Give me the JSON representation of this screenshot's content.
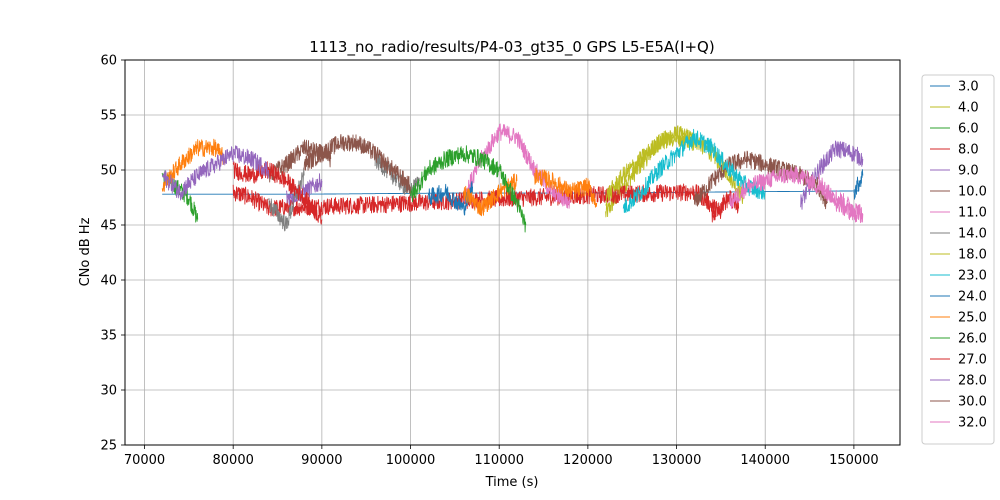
{
  "chart_data": {
    "type": "line",
    "title": "1113_no_radio/results/P4-03_gt35_0 GPS L5-E5A(I+Q)",
    "xlabel": "Time (s)",
    "ylabel": "CNo dB Hz",
    "xlim": [
      67800,
      155200
    ],
    "ylim": [
      25,
      60
    ],
    "xticks": [
      70000,
      80000,
      90000,
      100000,
      110000,
      120000,
      130000,
      140000,
      150000
    ],
    "yticks": [
      25,
      30,
      35,
      40,
      45,
      50,
      55,
      60
    ],
    "grid": true,
    "legend_position": "right",
    "series": [
      {
        "name": "3.0",
        "color": "#1f77b4",
        "segments": [
          [
            [
              72000,
              47.8
            ],
            [
              88000,
              47.8
            ],
            [
              104000,
              47.9
            ],
            [
              120000,
              47.9
            ],
            [
              135000,
              48.0
            ],
            [
              150500,
              48.1
            ]
          ]
        ]
      },
      {
        "name": "4.0",
        "color": "#bcbd22",
        "segments": [
          [
            [
              122000,
              46
            ],
            [
              124000,
              48.5
            ],
            [
              126000,
              50.5
            ],
            [
              128000,
              52.5
            ],
            [
              130000,
              53.3
            ],
            [
              132000,
              52.8
            ],
            [
              134000,
              51.5
            ],
            [
              136000,
              49.5
            ],
            [
              137500,
              47.5
            ]
          ]
        ]
      },
      {
        "name": "6.0",
        "color": "#2ca02c",
        "segments": [
          [
            [
              72000,
              49.5
            ],
            [
              73500,
              48.5
            ],
            [
              75000,
              47.5
            ],
            [
              76000,
              45.5
            ]
          ]
        ]
      },
      {
        "name": "8.0",
        "color": "#d62728",
        "segments": [
          [
            [
              80000,
              48
            ],
            [
              82000,
              47.5
            ],
            [
              84000,
              46.5
            ],
            [
              86000,
              46.6
            ],
            [
              95000,
              46.8
            ],
            [
              105000,
              47.2
            ],
            [
              120000,
              47.7
            ],
            [
              132000,
              48.0
            ],
            [
              133000,
              47.5
            ],
            [
              135000,
              46
            ]
          ]
        ]
      },
      {
        "name": "9.0",
        "color": "#9467bd",
        "segments": [
          [
            [
              86000,
              47.5
            ],
            [
              88000,
              48
            ],
            [
              90000,
              49
            ]
          ],
          [
            [
              144000,
              47
            ],
            [
              146000,
              50
            ],
            [
              148000,
              52
            ],
            [
              150000,
              51.5
            ],
            [
              151000,
              51
            ]
          ]
        ]
      },
      {
        "name": "10.0",
        "color": "#8c564b",
        "segments": [
          [
            [
              84000,
              49.5
            ],
            [
              86000,
              50.5
            ],
            [
              88000,
              52
            ],
            [
              90000,
              51.5
            ],
            [
              91000,
              51
            ]
          ],
          [
            [
              132000,
              47
            ],
            [
              134000,
              49
            ],
            [
              136000,
              50.5
            ],
            [
              138000,
              51
            ],
            [
              140000,
              50.5
            ],
            [
              142000,
              50
            ],
            [
              144000,
              49.5
            ],
            [
              146000,
              48.5
            ],
            [
              147000,
              47
            ]
          ]
        ]
      },
      {
        "name": "11.0",
        "color": "#e377c2",
        "segments": [
          [
            [
              106000,
              47.5
            ],
            [
              108000,
              51
            ],
            [
              110000,
              53.5
            ],
            [
              112000,
              53
            ],
            [
              114000,
              50
            ],
            [
              116000,
              48
            ],
            [
              118000,
              47
            ]
          ],
          [
            [
              146000,
              49
            ],
            [
              148000,
              47
            ],
            [
              150000,
              46
            ],
            [
              151000,
              46
            ]
          ]
        ]
      },
      {
        "name": "14.0",
        "color": "#7f7f7f",
        "segments": [
          [
            [
              84000,
              47
            ],
            [
              86000,
              45
            ],
            [
              87000,
              47.5
            ],
            [
              88000,
              49.5
            ]
          ],
          [
            [
              96000,
              51
            ],
            [
              98000,
              49.5
            ],
            [
              100000,
              48
            ],
            [
              101000,
              49
            ]
          ]
        ]
      },
      {
        "name": "18.0",
        "color": "#bcbd22",
        "segments": [
          [
            [
              122000,
              47.5
            ],
            [
              124000,
              49.5
            ],
            [
              126000,
              51
            ],
            [
              128000,
              52.5
            ],
            [
              130000,
              53
            ],
            [
              132000,
              52.5
            ]
          ]
        ]
      },
      {
        "name": "23.0",
        "color": "#17becf",
        "segments": [
          [
            [
              124000,
              46.5
            ],
            [
              126000,
              48
            ],
            [
              128000,
              50
            ],
            [
              130000,
              51.5
            ],
            [
              132000,
              53
            ],
            [
              134000,
              52
            ],
            [
              136000,
              50
            ],
            [
              138000,
              48.5
            ],
            [
              140000,
              48
            ]
          ]
        ]
      },
      {
        "name": "24.0",
        "color": "#1f77b4",
        "segments": [
          [
            [
              102000,
              47.5
            ],
            [
              104000,
              48
            ],
            [
              106000,
              46.5
            ],
            [
              107000,
              48.5
            ]
          ],
          [
            [
              150000,
              48
            ],
            [
              151000,
              49.5
            ]
          ]
        ]
      },
      {
        "name": "25.0",
        "color": "#ff7f0e",
        "segments": [
          [
            [
              72000,
              48.5
            ],
            [
              74000,
              50.5
            ],
            [
              76000,
              52
            ],
            [
              78000,
              52
            ],
            [
              79000,
              51
            ]
          ],
          [
            [
              106000,
              48
            ],
            [
              108000,
              46.5
            ],
            [
              110000,
              48
            ],
            [
              112000,
              49
            ]
          ],
          [
            [
              114000,
              49.5
            ],
            [
              116000,
              49
            ],
            [
              118000,
              48
            ],
            [
              120000,
              48.5
            ],
            [
              121000,
              47
            ]
          ]
        ]
      },
      {
        "name": "26.0",
        "color": "#2ca02c",
        "segments": [
          [
            [
              100000,
              47.5
            ],
            [
              102000,
              50
            ],
            [
              104000,
              51
            ],
            [
              106000,
              51.5
            ],
            [
              108000,
              51
            ],
            [
              110000,
              50
            ],
            [
              112000,
              47
            ],
            [
              113000,
              45
            ]
          ]
        ]
      },
      {
        "name": "27.0",
        "color": "#d62728",
        "segments": [
          [
            [
              80000,
              50
            ],
            [
              82000,
              49.5
            ],
            [
              84000,
              50
            ],
            [
              86000,
              49
            ],
            [
              88000,
              47.5
            ],
            [
              90000,
              45.5
            ]
          ],
          [
            [
              134000,
              46
            ],
            [
              136000,
              47.5
            ],
            [
              137000,
              46.5
            ]
          ]
        ]
      },
      {
        "name": "28.0",
        "color": "#9467bd",
        "segments": [
          [
            [
              72000,
              49.5
            ],
            [
              74000,
              48
            ],
            [
              76000,
              49.5
            ],
            [
              78000,
              50.5
            ],
            [
              80000,
              51.5
            ],
            [
              82000,
              51
            ],
            [
              84000,
              50
            ]
          ]
        ]
      },
      {
        "name": "30.0",
        "color": "#8c564b",
        "segments": [
          [
            [
              88000,
              50.5
            ],
            [
              90000,
              51.5
            ],
            [
              92000,
              52.5
            ],
            [
              94000,
              52.5
            ],
            [
              96000,
              51.5
            ],
            [
              98000,
              50
            ],
            [
              100000,
              48.5
            ]
          ]
        ]
      },
      {
        "name": "32.0",
        "color": "#e377c2",
        "segments": [
          [
            [
              136000,
              47
            ],
            [
              138000,
              48.5
            ],
            [
              140000,
              49
            ],
            [
              142000,
              49.5
            ],
            [
              144000,
              49.5
            ],
            [
              146000,
              48.5
            ],
            [
              148000,
              47.5
            ],
            [
              150000,
              46.5
            ],
            [
              151000,
              46
            ]
          ]
        ]
      }
    ]
  }
}
